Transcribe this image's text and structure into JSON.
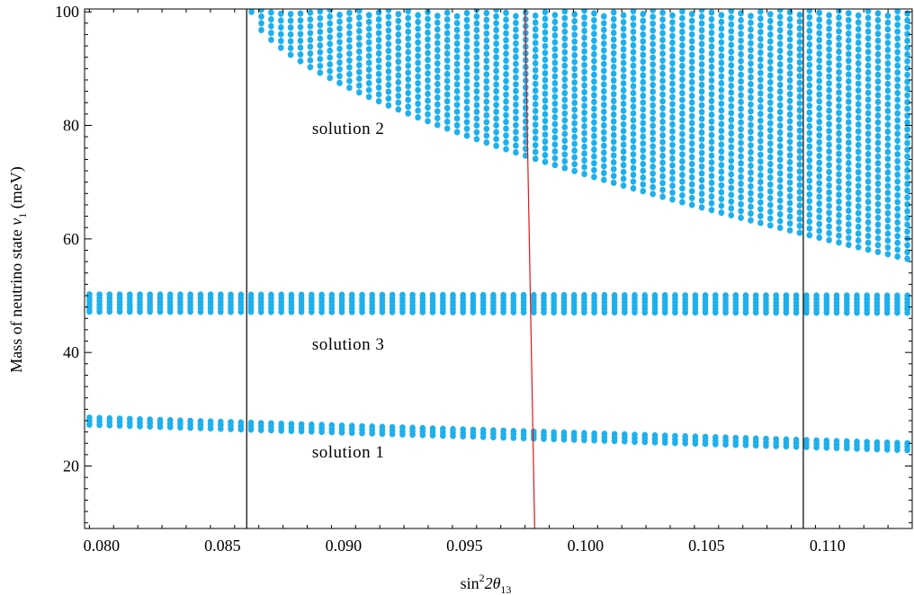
{
  "chart_data": {
    "type": "scatter",
    "title": "",
    "xlabel": "sin²2θ₁₃",
    "xlabel_parts": {
      "base": "sin",
      "sup": "2",
      "mid": "2θ",
      "sub": "13"
    },
    "ylabel": "Mass of neutrino state",
    "ylabel_parts": {
      "text": "Mass of neutrino state  ",
      "symbol": "ν",
      "sub": "1",
      "unit": " (meV)"
    },
    "xlim": [
      0.0793,
      0.1135
    ],
    "ylim": [
      9,
      100.5
    ],
    "x_ticks": [
      0.08,
      0.085,
      0.09,
      0.095,
      0.1,
      0.105,
      0.11
    ],
    "x_tick_labels": [
      "0.080",
      "0.085",
      "0.090",
      "0.095",
      "0.100",
      "0.105",
      "0.110"
    ],
    "y_ticks": [
      20,
      40,
      60,
      80,
      100
    ],
    "y_tick_labels": [
      "20",
      "40",
      "60",
      "80",
      "100"
    ],
    "grid": false,
    "colors": {
      "points": "#1fb0ec",
      "vertical_lines": "#000000",
      "red_line": "#e0161a"
    },
    "vertical_lines": [
      0.086,
      0.109
    ],
    "red_line": {
      "points": [
        [
          0.0975,
          100.5
        ],
        [
          0.0979,
          9
        ]
      ]
    },
    "series": [
      {
        "x_range": [
          0.0795,
          0.1133
        ],
        "n_columns": 82,
        "y_upper": {
          "a": 28.5,
          "b": 24.0
        },
        "y_lower": {
          "a": 27.3,
          "b": 22.8
        },
        "rows": 3
      },
      {
        "x_range": [
          0.0795,
          0.1133
        ],
        "n_columns": 82,
        "y_upper": {
          "a": 50.2,
          "b": 50.0
        },
        "y_lower": {
          "a": 47.2,
          "b": 47.0
        },
        "rows": 6
      },
      {
        "x_range": [
          0.0862,
          0.1133
        ],
        "n_columns": 68,
        "y_upper": 100,
        "y_lower_k": 6.55,
        "y_step": 1.2,
        "left_edge": {
          "x0": 0.0862,
          "x1": 0.0995
        }
      }
    ],
    "annotations": [
      {
        "text": "solution 2",
        "x": 0.0887,
        "y": 78.5
      },
      {
        "text": "solution 3",
        "x": 0.0887,
        "y": 40.5
      },
      {
        "text": "solution 1",
        "x": 0.0887,
        "y": 21.5
      }
    ]
  }
}
